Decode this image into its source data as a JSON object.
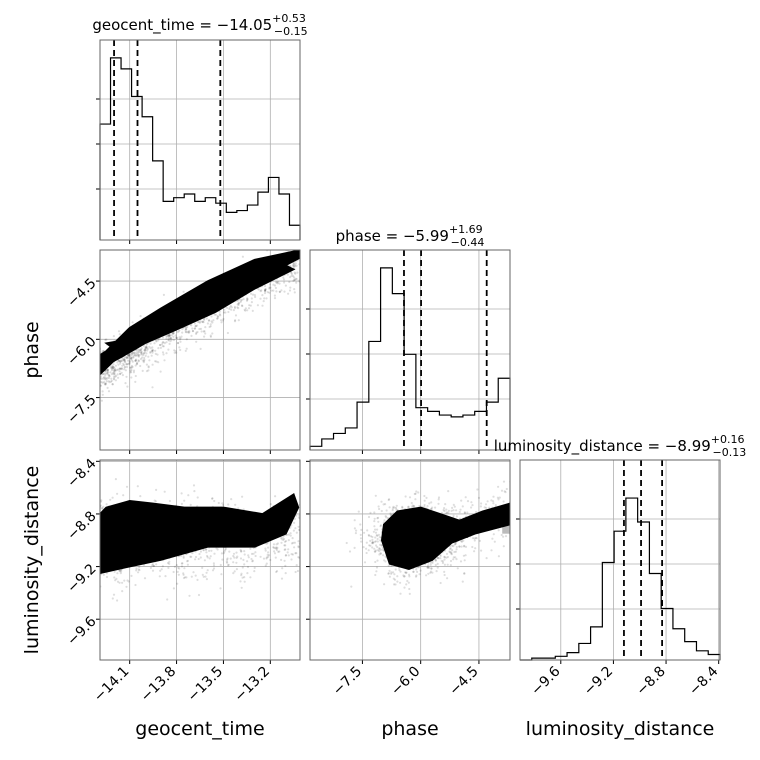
{
  "chart_data": {
    "type": "corner",
    "params": [
      "geocent_time",
      "phase",
      "luminosity_distance"
    ],
    "axis_labels": [
      "geocent_time",
      "phase",
      "luminosity_distance"
    ],
    "ranges": [
      [
        -14.29,
        -13.01
      ],
      [
        -8.85,
        -3.7
      ],
      [
        -9.91,
        -8.39
      ]
    ],
    "ticks": [
      {
        "values": [
          -14.1,
          -13.8,
          -13.5,
          -13.2
        ],
        "labels": [
          "−14.1",
          "−13.8",
          "−13.5",
          "−13.2"
        ]
      },
      {
        "values": [
          -7.5,
          -6.0,
          -4.5
        ],
        "labels": [
          "−7.5",
          "−6.0",
          "−4.5"
        ]
      },
      {
        "values": [
          -9.6,
          -9.2,
          -8.8,
          -8.4
        ],
        "labels": [
          "−9.6",
          "−9.2",
          "−8.8",
          "−8.4"
        ]
      }
    ],
    "titles": [
      {
        "text": "geocent_time = −14.05",
        "plus": "+0.53",
        "minus": "−0.15"
      },
      {
        "text": "phase = −5.99",
        "plus": "+1.69",
        "minus": "−0.44"
      },
      {
        "text": "luminosity_distance = −8.99",
        "plus": "+0.16",
        "minus": "−0.13"
      }
    ],
    "quantiles": [
      [
        -14.2,
        -14.05,
        -13.52
      ],
      [
        -6.43,
        -5.99,
        -4.3
      ],
      [
        -9.12,
        -8.99,
        -8.83
      ]
    ],
    "histograms": [
      [
        0.63,
        0.99,
        0.93,
        0.78,
        0.67,
        0.43,
        0.21,
        0.23,
        0.25,
        0.21,
        0.23,
        0.2,
        0.15,
        0.16,
        0.19,
        0.26,
        0.34,
        0.25,
        0.08
      ],
      [
        0.02,
        0.06,
        0.09,
        0.12,
        0.26,
        0.59,
        0.99,
        0.85,
        0.52,
        0.23,
        0.21,
        0.19,
        0.18,
        0.19,
        0.21,
        0.26,
        0.39
      ],
      [
        0.0,
        0.01,
        0.01,
        0.02,
        0.04,
        0.09,
        0.18,
        0.53,
        0.7,
        0.88,
        0.75,
        0.47,
        0.28,
        0.17,
        0.1,
        0.05,
        0.03
      ]
    ],
    "grid": true,
    "layout": "lower-triangle 3x3"
  }
}
